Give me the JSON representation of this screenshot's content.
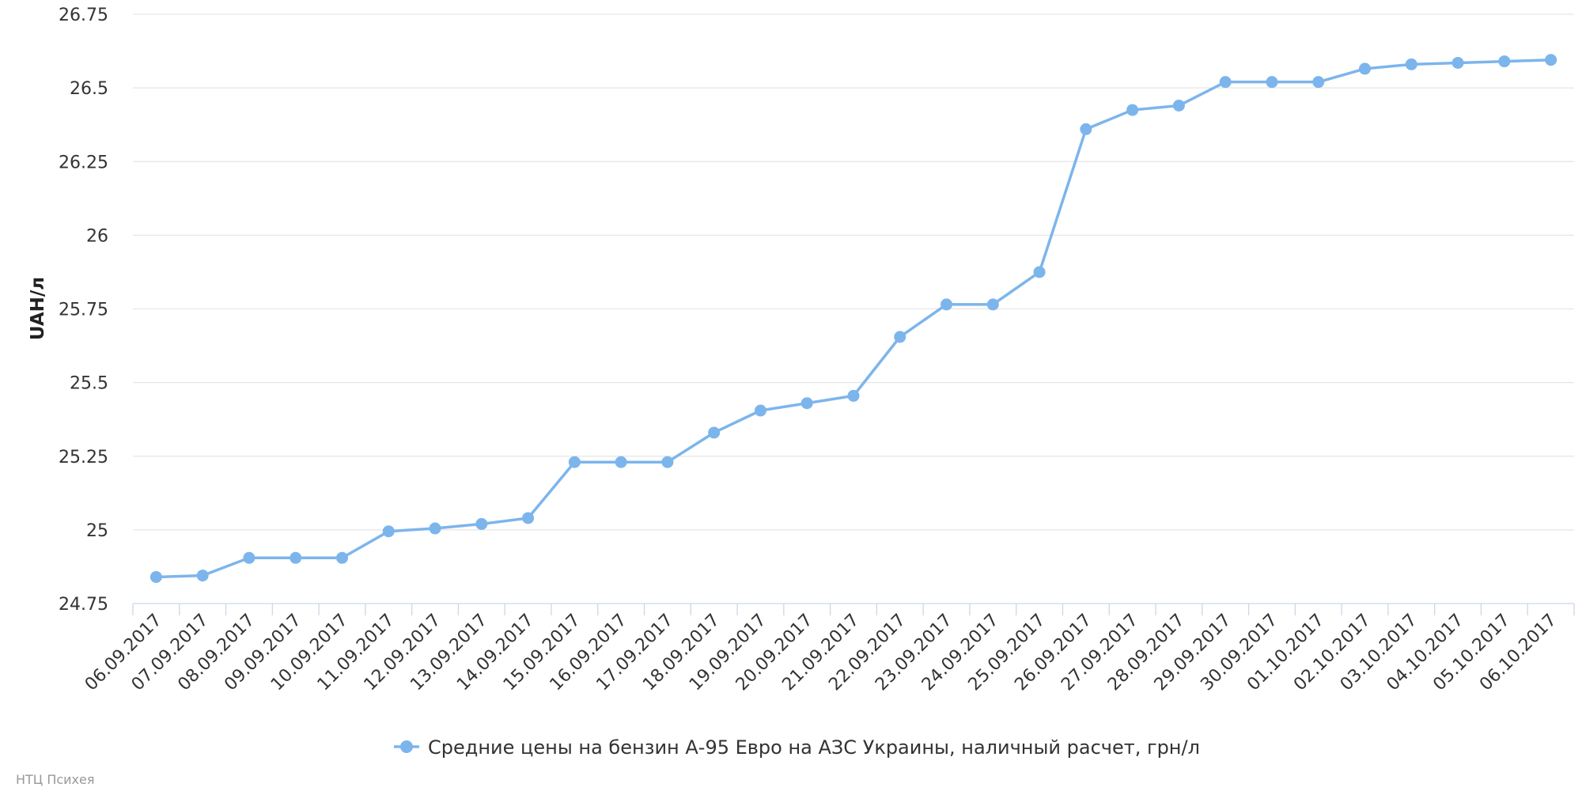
{
  "chart_data": {
    "type": "line",
    "title": "",
    "xlabel": "",
    "ylabel": "UAH/л",
    "ylim": [
      24.75,
      26.75
    ],
    "yticks": [
      "24.75",
      "25",
      "25.25",
      "25.5",
      "25.75",
      "26",
      "26.25",
      "26.5",
      "26.75"
    ],
    "grid": true,
    "legend_position": "bottom-center",
    "categories": [
      "06.09.2017",
      "07.09.2017",
      "08.09.2017",
      "09.09.2017",
      "10.09.2017",
      "11.09.2017",
      "12.09.2017",
      "13.09.2017",
      "14.09.2017",
      "15.09.2017",
      "16.09.2017",
      "17.09.2017",
      "18.09.2017",
      "19.09.2017",
      "20.09.2017",
      "21.09.2017",
      "22.09.2017",
      "23.09.2017",
      "24.09.2017",
      "25.09.2017",
      "26.09.2017",
      "27.09.2017",
      "28.09.2017",
      "29.09.2017",
      "30.09.2017",
      "01.10.2017",
      "02.10.2017",
      "03.10.2017",
      "04.10.2017",
      "05.10.2017",
      "06.10.2017"
    ],
    "series": [
      {
        "name": "Средние цены на бензин А-95 Евро на АЗС Украины, наличный расчет, грн/л",
        "color": "#7cb5ec",
        "values": [
          24.84,
          24.845,
          24.905,
          24.905,
          24.905,
          24.995,
          25.005,
          25.02,
          25.04,
          25.23,
          25.23,
          25.23,
          25.33,
          25.405,
          25.43,
          25.455,
          25.655,
          25.765,
          25.765,
          25.875,
          26.36,
          26.425,
          26.44,
          26.52,
          26.52,
          26.52,
          26.565,
          26.58,
          26.585,
          26.59,
          26.595
        ]
      }
    ]
  },
  "credits": "НТЦ Психея"
}
